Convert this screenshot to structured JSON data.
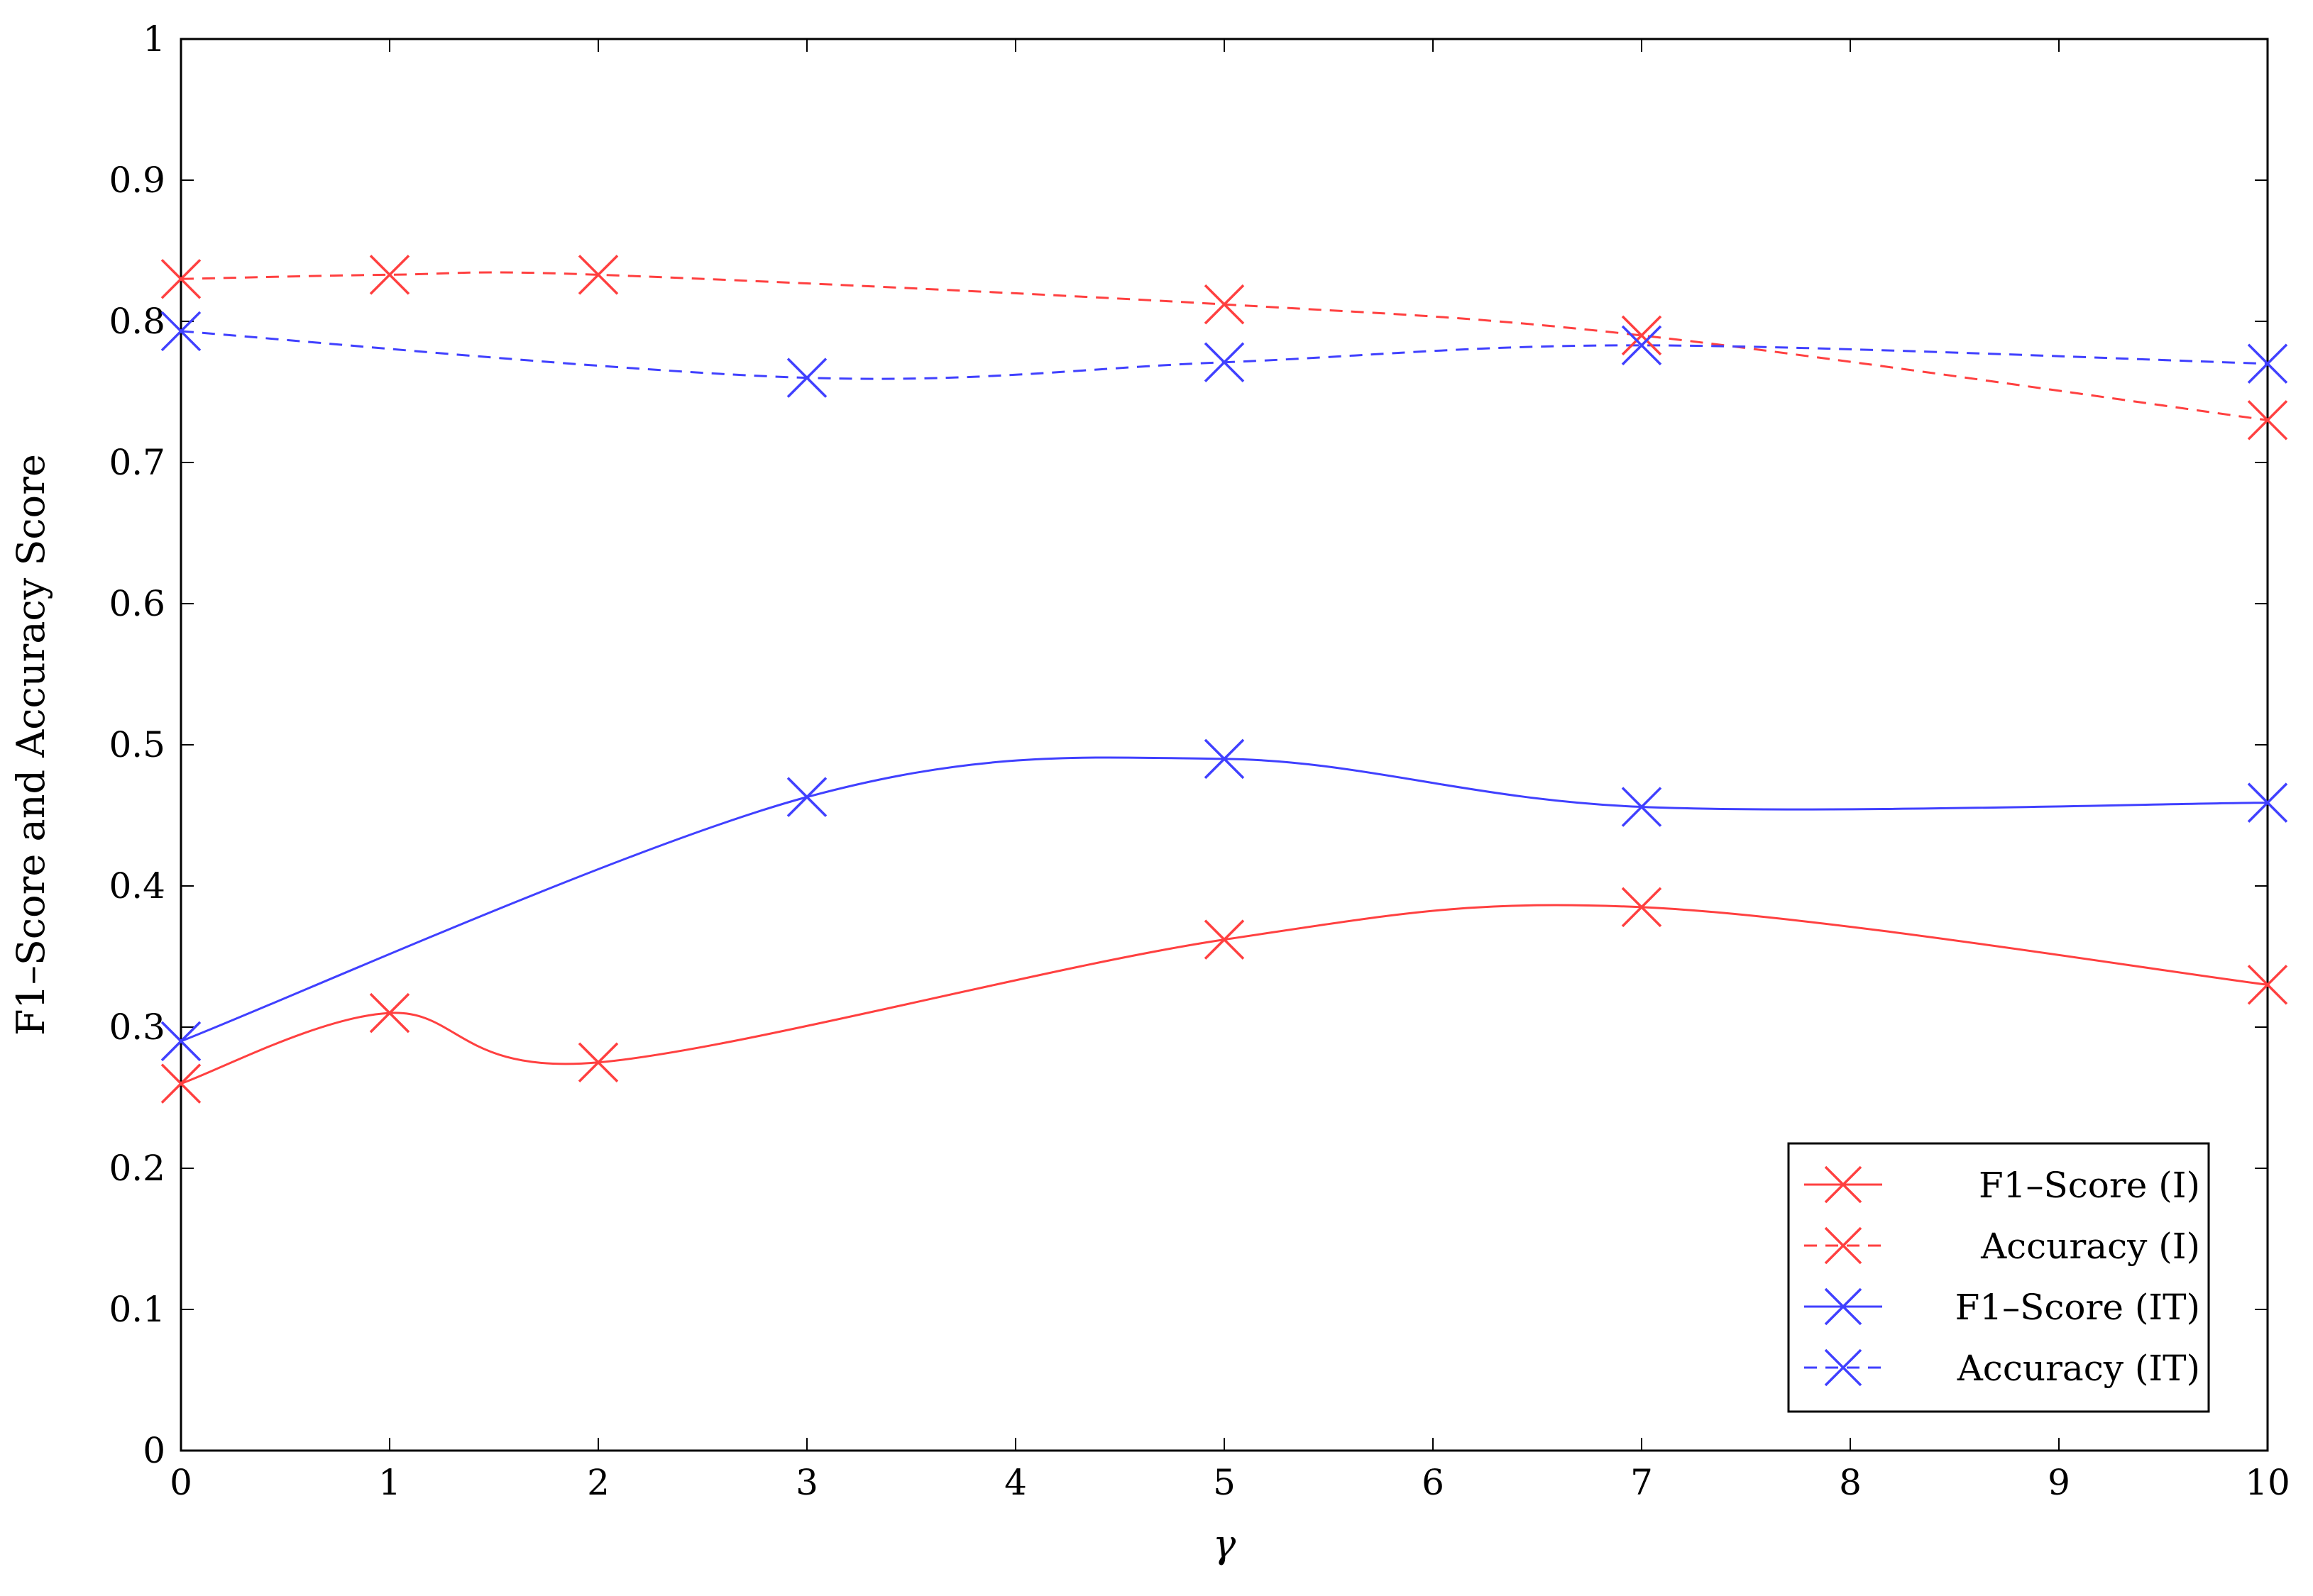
{
  "chart_data": {
    "type": "line",
    "title": "",
    "xlabel": "γ",
    "ylabel": "F1–Score and Accuracy Score",
    "xlim": [
      0,
      10
    ],
    "ylim": [
      0,
      1
    ],
    "xticks": [
      "0",
      "1",
      "2",
      "3",
      "4",
      "5",
      "6",
      "7",
      "8",
      "9",
      "10"
    ],
    "yticks": [
      "0",
      "0.1",
      "0.2",
      "0.3",
      "0.4",
      "0.5",
      "0.6",
      "0.7",
      "0.8",
      "0.9",
      "1"
    ],
    "grid": false,
    "legend_position": "bottom-right",
    "series": [
      {
        "name": "F1–Score (I)",
        "color": "#ff4040",
        "dash": "solid",
        "marker": "x",
        "x": [
          0,
          1,
          2,
          5,
          7,
          10
        ],
        "y": [
          0.26,
          0.31,
          0.275,
          0.362,
          0.385,
          0.33
        ]
      },
      {
        "name": "Accuracy (I)",
        "color": "#ff4040",
        "dash": "dashed",
        "marker": "x",
        "x": [
          0,
          1,
          2,
          5,
          7,
          10
        ],
        "y": [
          0.83,
          0.833,
          0.833,
          0.812,
          0.79,
          0.73
        ]
      },
      {
        "name": "F1–Score (IT)",
        "color": "#4040ff",
        "dash": "solid",
        "marker": "x",
        "x": [
          0,
          3,
          5,
          7,
          10
        ],
        "y": [
          0.29,
          0.463,
          0.49,
          0.456,
          0.459
        ]
      },
      {
        "name": "Accuracy (IT)",
        "color": "#4040ff",
        "dash": "dashed",
        "marker": "x",
        "x": [
          0,
          3,
          5,
          7,
          10
        ],
        "y": [
          0.793,
          0.76,
          0.771,
          0.783,
          0.77
        ]
      }
    ]
  }
}
